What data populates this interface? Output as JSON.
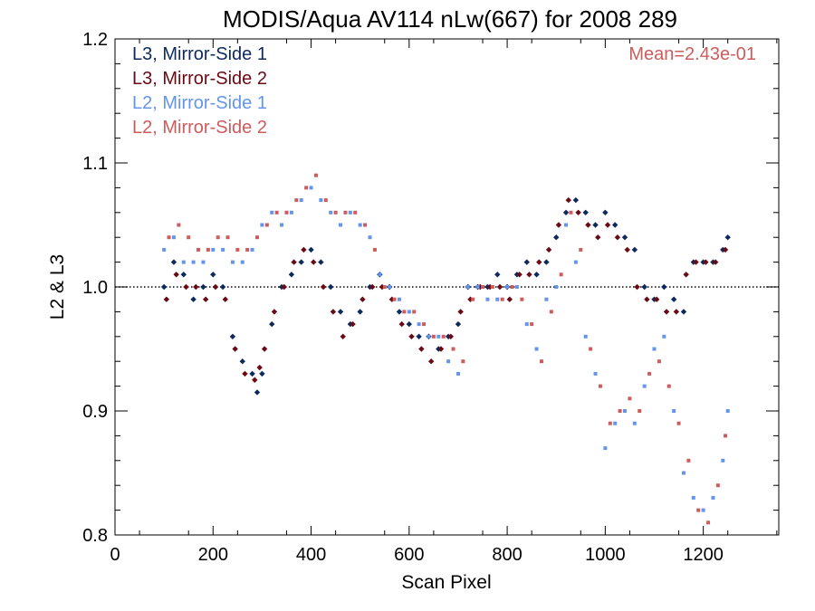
{
  "chart_data": {
    "type": "scatter",
    "title": "MODIS/Aqua AV114 nLw(667) for 2008 289",
    "xlabel": "Scan Pixel",
    "ylabel": "L2 & L3",
    "xlim": [
      0,
      1354
    ],
    "ylim": [
      0.8,
      1.2
    ],
    "xticks": [
      0,
      200,
      400,
      600,
      800,
      1000,
      1200
    ],
    "xtick_labels": [
      "0",
      "200",
      "400",
      "600",
      "800",
      "1000",
      "1200"
    ],
    "yticks": [
      0.8,
      0.9,
      1.0,
      1.1,
      1.2
    ],
    "ytick_labels": [
      "0.8",
      "0.9",
      "1.0",
      "1.1",
      "1.2"
    ],
    "reference_line": {
      "y": 1.0,
      "style": "dotted"
    },
    "annotation": "Mean=2.43e-01",
    "annotation_color": "#cd5c5c",
    "legend_placement": "top-left",
    "series": [
      {
        "name": "L3, Mirror-Side 1",
        "color": "#0d2a5e",
        "marker": "diamond",
        "x": [
          100,
          120,
          140,
          160,
          180,
          200,
          220,
          240,
          260,
          280,
          290,
          300,
          320,
          340,
          360,
          380,
          400,
          420,
          440,
          460,
          480,
          500,
          520,
          540,
          560,
          580,
          600,
          620,
          640,
          660,
          680,
          700,
          720,
          740,
          760,
          780,
          800,
          820,
          840,
          860,
          880,
          900,
          920,
          940,
          960,
          980,
          1000,
          1020,
          1040,
          1060,
          1080,
          1100,
          1120,
          1140,
          1160,
          1180,
          1200,
          1220,
          1240,
          1250
        ],
        "y": [
          1.0,
          1.02,
          1.01,
          0.99,
          1.0,
          1.01,
          1.0,
          0.96,
          0.94,
          0.93,
          0.915,
          0.93,
          0.97,
          1.0,
          1.01,
          1.02,
          1.03,
          1.02,
          1.0,
          0.98,
          0.97,
          0.98,
          1.0,
          1.01,
          1.0,
          0.98,
          0.97,
          0.96,
          0.96,
          0.95,
          0.96,
          0.97,
          1.0,
          1.0,
          1.0,
          1.01,
          1.0,
          1.01,
          1.02,
          1.01,
          1.02,
          1.04,
          1.06,
          1.07,
          1.06,
          1.05,
          1.06,
          1.05,
          1.04,
          1.03,
          1.0,
          0.99,
          1.0,
          0.99,
          0.98,
          1.02,
          1.02,
          1.02,
          1.03,
          1.04
        ]
      },
      {
        "name": "L3, Mirror-Side 2",
        "color": "#6b0a14",
        "marker": "diamond",
        "x": [
          105,
          125,
          145,
          165,
          185,
          205,
          225,
          245,
          265,
          285,
          295,
          305,
          325,
          345,
          365,
          385,
          405,
          425,
          445,
          465,
          485,
          505,
          525,
          545,
          565,
          585,
          605,
          625,
          645,
          665,
          685,
          705,
          725,
          745,
          765,
          785,
          805,
          825,
          845,
          865,
          885,
          905,
          925,
          945,
          965,
          985,
          1005,
          1025,
          1045,
          1065,
          1085,
          1105,
          1125,
          1145,
          1165,
          1185,
          1205,
          1225,
          1245
        ],
        "y": [
          0.99,
          1.01,
          1.0,
          1.0,
          0.99,
          1.0,
          0.99,
          0.95,
          0.93,
          0.925,
          0.935,
          0.95,
          0.98,
          1.0,
          1.02,
          1.03,
          1.02,
          1.0,
          0.98,
          0.96,
          0.97,
          0.99,
          1.0,
          1.0,
          0.99,
          0.97,
          0.96,
          0.95,
          0.94,
          0.95,
          0.96,
          0.98,
          0.99,
          1.0,
          1.0,
          1.0,
          0.99,
          1.01,
          1.01,
          1.02,
          1.03,
          1.05,
          1.07,
          1.06,
          1.05,
          1.04,
          1.05,
          1.04,
          1.03,
          1.0,
          0.99,
          0.99,
          0.98,
          0.98,
          1.01,
          1.02,
          1.02,
          1.02,
          1.03
        ]
      },
      {
        "name": "L2, Mirror-Side 1",
        "color": "#6495ed",
        "marker": "square",
        "x": [
          100,
          120,
          140,
          160,
          180,
          200,
          220,
          240,
          260,
          280,
          300,
          320,
          340,
          360,
          380,
          400,
          420,
          440,
          460,
          480,
          500,
          520,
          540,
          560,
          580,
          600,
          620,
          640,
          660,
          680,
          700,
          720,
          740,
          760,
          780,
          800,
          820,
          840,
          860,
          880,
          900,
          920,
          940,
          960,
          980,
          1000,
          1020,
          1040,
          1060,
          1080,
          1100,
          1120,
          1140,
          1160,
          1180,
          1200,
          1220,
          1240,
          1250
        ],
        "y": [
          1.03,
          1.04,
          1.02,
          1.02,
          1.02,
          1.03,
          1.03,
          1.02,
          1.02,
          1.03,
          1.05,
          1.06,
          1.05,
          1.06,
          1.07,
          1.08,
          1.07,
          1.06,
          1.05,
          1.06,
          1.05,
          1.04,
          1.01,
          1.0,
          0.99,
          0.98,
          0.97,
          0.96,
          0.96,
          0.94,
          0.93,
          1.0,
          1.0,
          0.99,
          0.99,
          1.0,
          1.0,
          0.97,
          0.95,
          0.99,
          1.0,
          1.05,
          1.02,
          0.96,
          0.93,
          0.87,
          0.89,
          0.9,
          0.89,
          0.92,
          0.95,
          0.96,
          0.9,
          0.85,
          0.83,
          0.82,
          0.83,
          0.86,
          0.9
        ]
      },
      {
        "name": "L2, Mirror-Side 2",
        "color": "#cd5c5c",
        "marker": "square",
        "x": [
          110,
          130,
          150,
          170,
          190,
          210,
          230,
          250,
          270,
          290,
          310,
          330,
          350,
          370,
          390,
          410,
          430,
          450,
          470,
          490,
          510,
          530,
          550,
          570,
          590,
          610,
          630,
          650,
          670,
          690,
          710,
          730,
          750,
          770,
          790,
          810,
          830,
          850,
          870,
          890,
          910,
          930,
          950,
          970,
          990,
          1010,
          1030,
          1050,
          1070,
          1090,
          1110,
          1130,
          1150,
          1170,
          1190,
          1210,
          1230,
          1245
        ],
        "y": [
          1.04,
          1.05,
          1.04,
          1.03,
          1.03,
          1.04,
          1.04,
          1.03,
          1.03,
          1.04,
          1.05,
          1.06,
          1.06,
          1.07,
          1.08,
          1.09,
          1.07,
          1.06,
          1.06,
          1.06,
          1.05,
          1.03,
          1.0,
          0.99,
          0.98,
          0.98,
          0.97,
          0.96,
          0.96,
          0.95,
          0.94,
          0.99,
          1.0,
          1.0,
          0.99,
          1.0,
          0.99,
          0.97,
          0.94,
          0.98,
          1.01,
          1.06,
          1.03,
          0.95,
          0.92,
          0.89,
          0.9,
          0.91,
          0.9,
          0.93,
          0.94,
          0.92,
          0.89,
          0.86,
          0.82,
          0.81,
          0.84,
          0.88
        ]
      }
    ]
  }
}
